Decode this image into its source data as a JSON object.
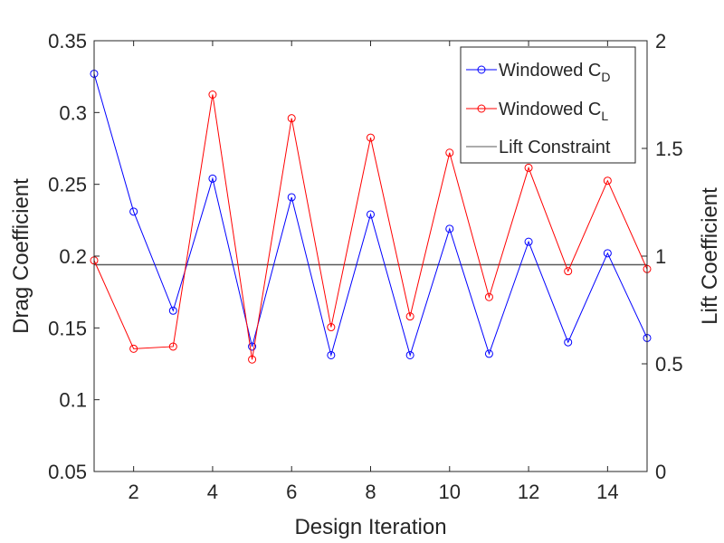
{
  "chart_data": {
    "type": "line",
    "xlabel": "Design Iteration",
    "ylabel_left": "Drag Coefficient",
    "ylabel_right": "Lift Coefficient",
    "xlim": [
      1,
      15
    ],
    "ylim_left": [
      0.05,
      0.35
    ],
    "ylim_right": [
      0,
      2
    ],
    "x_ticks": [
      2,
      4,
      6,
      8,
      10,
      12,
      14
    ],
    "y_ticks_left": [
      0.05,
      0.1,
      0.15,
      0.2,
      0.25,
      0.3,
      0.35
    ],
    "y_ticks_right": [
      0,
      0.5,
      1,
      1.5,
      2
    ],
    "x": [
      1,
      2,
      3,
      4,
      5,
      6,
      7,
      8,
      9,
      10,
      11,
      12,
      13,
      14,
      15
    ],
    "series": [
      {
        "name": "Windowed C",
        "subscript": "D",
        "axis": "left",
        "color": "#0000ff",
        "marker": "circle",
        "values": [
          0.327,
          0.231,
          0.162,
          0.254,
          0.137,
          0.241,
          0.131,
          0.229,
          0.131,
          0.219,
          0.132,
          0.21,
          0.14,
          0.202,
          0.143
        ]
      },
      {
        "name": "Windowed C",
        "subscript": "L",
        "axis": "right",
        "color": "#ff0000",
        "marker": "circle",
        "values": [
          0.98,
          0.57,
          0.58,
          1.75,
          0.52,
          1.64,
          0.67,
          1.55,
          0.72,
          1.48,
          0.81,
          1.41,
          0.93,
          1.35,
          0.94
        ]
      }
    ],
    "reference_line": {
      "name": "Lift Constraint",
      "axis": "right",
      "value": 0.96,
      "color": "#595959"
    },
    "legend_position": "top-right",
    "grid": false
  }
}
